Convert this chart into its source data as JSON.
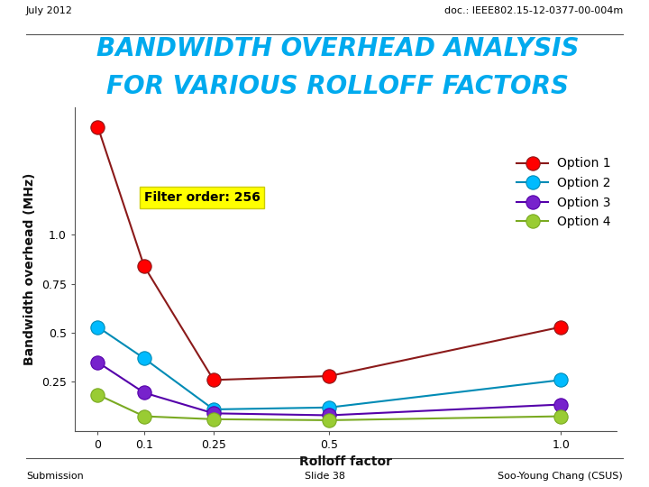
{
  "title_line1": "BANDWIDTH OVERHEAD ANALYSIS",
  "title_line2": "FOR VARIOUS ROLLOFF FACTORS",
  "header_left": "July 2012",
  "header_right": "doc.: IEEE802.15-12-0377-00-004m",
  "footer_left": "Submission",
  "footer_center": "Slide 38",
  "footer_right": "Soo-Young Chang (CSUS)",
  "xlabel": "Rolloff factor",
  "ylabel": "Bandwidth overhead (MHz)",
  "annotation": "Filter order: 256",
  "x_values": [
    0,
    0.1,
    0.25,
    0.5,
    1.0
  ],
  "option1": {
    "label": "Option 1",
    "line_color": "#8b1a1a",
    "marker_color": "#ff0000",
    "y": [
      1.55,
      0.84,
      0.26,
      0.28,
      0.53
    ]
  },
  "option2": {
    "label": "Option 2",
    "line_color": "#008bb5",
    "marker_color": "#00bbff",
    "y": [
      0.53,
      0.37,
      0.11,
      0.12,
      0.26
    ]
  },
  "option3": {
    "label": "Option 3",
    "line_color": "#5500aa",
    "marker_color": "#7722cc",
    "y": [
      0.35,
      0.195,
      0.09,
      0.08,
      0.135
    ]
  },
  "option4": {
    "label": "Option 4",
    "line_color": "#7aaa22",
    "marker_color": "#99cc33",
    "y": [
      0.185,
      0.075,
      0.06,
      0.055,
      0.075
    ]
  },
  "ylim": [
    0,
    1.65
  ],
  "yticks": [
    0.25,
    0.5,
    0.75,
    1.0
  ],
  "xticks": [
    0,
    0.1,
    0.25,
    0.5,
    1.0
  ],
  "xlim": [
    -0.05,
    1.12
  ],
  "bg_color": "#ffffff",
  "plot_bg": "#ffffff",
  "title_color": "#00aaee",
  "header_line_color": "#555555",
  "footer_line_color": "#555555",
  "annotation_bg": "#ffff00",
  "annotation_color": "#000000",
  "title_fontsize": 20,
  "axis_label_fontsize": 10,
  "tick_fontsize": 9,
  "legend_fontsize": 10,
  "header_fontsize": 8,
  "footer_fontsize": 8
}
